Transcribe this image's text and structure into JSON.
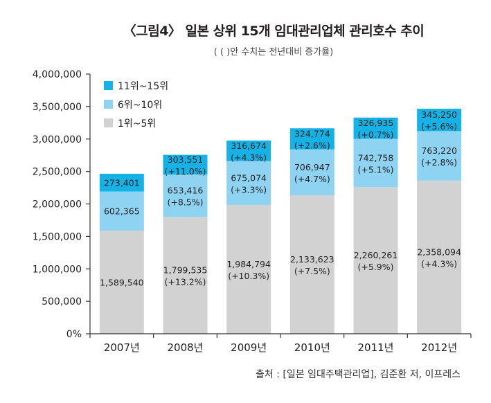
{
  "title": "〈그림4〉 일본 상위 15개 임대관리업체 관리호수 추이",
  "subtitle": "( ( )안 수치는 전년대비 증가율)",
  "source": "출처 : [일본 임대주택관리업], 김준환 저, 이프레스",
  "colors": {
    "top5": "#d2d2d2",
    "mid": "#8fd3f2",
    "low": "#16b2e5",
    "axis": "#333333"
  },
  "chart_data": {
    "type": "bar",
    "stacked": true,
    "categories": [
      "2007년",
      "2008년",
      "2009년",
      "2010년",
      "2011년",
      "2012년"
    ],
    "ylim": [
      0,
      4000000
    ],
    "yticks": [
      "0%",
      "500,000",
      "1,000,000",
      "1,500,000",
      "2,000,000",
      "2,500,000",
      "3,000,000",
      "3,500,000",
      "4,000,000"
    ],
    "legend_position": "top-left",
    "series": [
      {
        "name": "1위~5위",
        "color": "#d2d2d2",
        "values": [
          1589540,
          1799535,
          1984794,
          2133623,
          2260261,
          2358094
        ],
        "labels": [
          "1,589,540",
          "1,799,535",
          "1,984,794",
          "2,133,623",
          "2,260,261",
          "2,358,094"
        ],
        "growth": [
          "",
          "(+13.2%)",
          "(+10.3%)",
          "(+7.5%)",
          "(+5.9%)",
          "(+4.3%)"
        ]
      },
      {
        "name": "6위~10위",
        "color": "#8fd3f2",
        "values": [
          602365,
          653416,
          675074,
          706947,
          742758,
          763220
        ],
        "labels": [
          "602,365",
          "653,416",
          "675,074",
          "706,947",
          "742,758",
          "763,220"
        ],
        "growth": [
          "",
          "(+8.5%)",
          "(+3.3%)",
          "(+4.7%)",
          "(+5.1%)",
          "(+2.8%)"
        ]
      },
      {
        "name": "11위~15위",
        "color": "#16b2e5",
        "values": [
          273401,
          303551,
          316674,
          324774,
          326935,
          345250
        ],
        "labels": [
          "273,401",
          "303,551",
          "316,674",
          "324,774",
          "326,935",
          "345,250"
        ],
        "growth": [
          "",
          "(+11.0%)",
          "(+4.3%)",
          "(+2.6%)",
          "(+0.7%)",
          "(+5.6%)"
        ]
      }
    ]
  }
}
